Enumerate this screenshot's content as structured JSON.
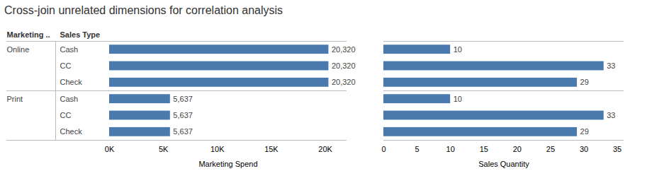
{
  "chart_data": [
    {
      "type": "bar",
      "orientation": "horizontal",
      "title": "Cross-join unrelated dimensions for correlation analysis",
      "group_label": "Marketing ..",
      "ylabel": "Sales Type",
      "groups": [
        "Online",
        null,
        null,
        "Print",
        null,
        null
      ],
      "categories": [
        "Cash",
        "CC",
        "Check",
        "Cash",
        "CC",
        "Check"
      ],
      "values": [
        20320,
        20320,
        20320,
        5637,
        5637,
        5637
      ],
      "value_labels": [
        "20,320",
        "20,320",
        "20,320",
        "5,637",
        "5,637",
        "5,637"
      ],
      "data_labels": true,
      "xlabel": "Marketing Spend",
      "xlim": [
        0,
        22000
      ],
      "xticks": [
        {
          "value": 0,
          "label": "0K"
        },
        {
          "value": 5000,
          "label": "5K"
        },
        {
          "value": 10000,
          "label": "10K"
        },
        {
          "value": 15000,
          "label": "15K"
        },
        {
          "value": 20000,
          "label": "20K"
        }
      ],
      "color": "#4a7aad",
      "grid": false
    },
    {
      "type": "bar",
      "orientation": "horizontal",
      "values": [
        10,
        33,
        29,
        10,
        33,
        29
      ],
      "data_labels": true,
      "xlabel": "Sales Quantity",
      "xlim": [
        0,
        36
      ],
      "xticks": [
        0,
        5,
        10,
        15,
        20,
        25,
        30,
        35
      ],
      "color": "#4a7aad",
      "grid": false
    }
  ]
}
